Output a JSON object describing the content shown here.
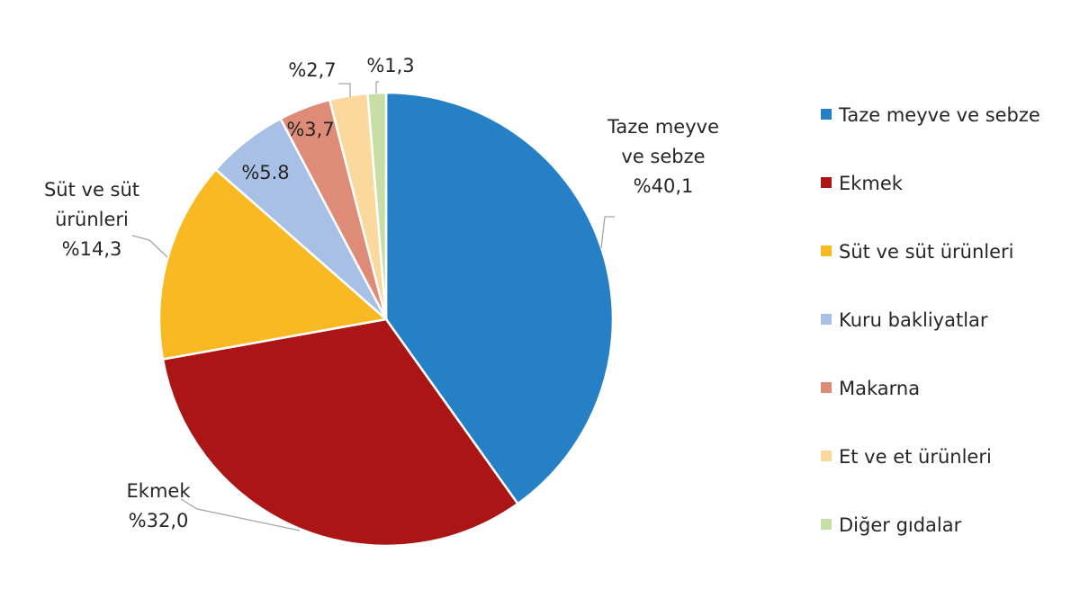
{
  "chart_data": {
    "type": "pie",
    "title": "",
    "legend_position": "right",
    "slices": [
      {
        "name": "Taze meyve ve sebze",
        "value": 40.1,
        "color": "#2680C6",
        "label_lines": [
          "Taze meyve",
          "ve sebze",
          "%40,1"
        ]
      },
      {
        "name": "Ekmek",
        "value": 32.0,
        "color": "#AC1515",
        "label_lines": [
          "Ekmek",
          "%32,0"
        ]
      },
      {
        "name": "Süt ve süt ürünleri",
        "value": 14.3,
        "color": "#F9B922",
        "label_lines": [
          "Süt ve süt",
          "ürünleri",
          "%14,3"
        ]
      },
      {
        "name": "Kuru bakliyatlar",
        "value": 5.8,
        "color": "#A8C0E5",
        "label_lines": [
          "%5.8"
        ]
      },
      {
        "name": "Makarna",
        "value": 3.7,
        "color": "#DE8B78",
        "label_lines": [
          "%3,7"
        ]
      },
      {
        "name": "Et ve et ürünleri",
        "value": 2.7,
        "color": "#FBD99C",
        "label_lines": [
          "%2,7"
        ]
      },
      {
        "name": "Diğer gıdalar",
        "value": 1.3,
        "color": "#C7DEA6",
        "label_lines": [
          "%1,3"
        ]
      }
    ]
  }
}
